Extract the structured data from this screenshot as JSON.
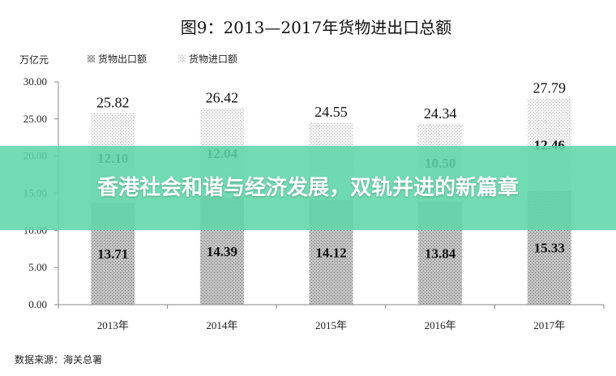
{
  "overlay": {
    "title": "香港社会和谐与经济发展，双轨并进的新篇章"
  },
  "chart_data": {
    "type": "bar",
    "stacked": true,
    "title": "图9：2013—2017年货物进出口总额",
    "ylabel": "万亿元",
    "categories": [
      "2013年",
      "2014年",
      "2015年",
      "2016年",
      "2017年"
    ],
    "series": [
      {
        "name": "货物出口额",
        "values": [
          13.71,
          14.39,
          14.12,
          13.84,
          15.33
        ],
        "labels": [
          "13.71",
          "14.39",
          "14.12",
          "13.84",
          "15.33"
        ]
      },
      {
        "name": "货物进口额",
        "values": [
          12.1,
          12.04,
          10.43,
          10.5,
          12.46
        ],
        "labels": [
          "12.10",
          "12.04",
          "",
          "10.50",
          "12.46"
        ]
      }
    ],
    "totals": [
      25.82,
      26.42,
      24.55,
      24.34,
      27.79
    ],
    "total_labels": [
      "25.82",
      "26.42",
      "24.55",
      "24.34",
      "27.79"
    ],
    "yticks": [
      "0.00",
      "5.00",
      "10.00",
      "15.00",
      "20.00",
      "25.00",
      "30.00"
    ],
    "ylim": [
      0,
      30
    ],
    "grid": false,
    "legend": "top-left",
    "source": "数据来源：海关总署",
    "colors": {
      "export": "#b8b8b8",
      "import": "#ececec",
      "export_dot": "#7a7a7a",
      "import_dot": "#bdbdbd"
    }
  }
}
